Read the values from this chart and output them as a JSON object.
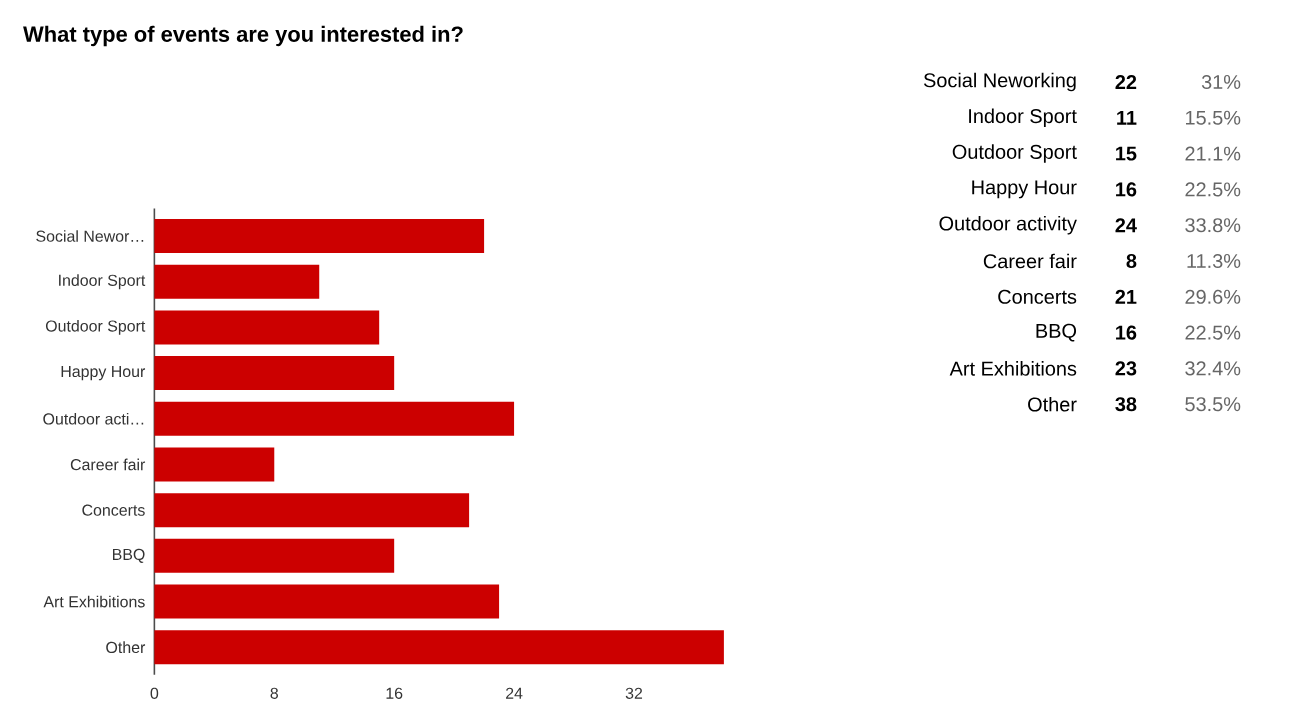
{
  "chart_data": [
    {
      "type": "bar",
      "orientation": "horizontal",
      "title": "What type of events are you interested in?",
      "categories": [
        "Social Newor…",
        "Indoor Sport",
        "Outdoor Sport",
        "Happy Hour",
        "Outdoor acti…",
        "Career fair",
        "Concerts",
        "BBQ",
        "Art Exhibitions",
        "Other"
      ],
      "values": [
        22,
        11,
        15,
        16,
        24,
        8,
        21,
        16,
        23,
        38
      ],
      "color": "#cc0000",
      "xlim": [
        0,
        38.3
      ],
      "xticks": [
        0,
        8,
        16,
        24,
        32
      ],
      "grid": false
    },
    {
      "type": "other",
      "categories": [
        "Social Neworking",
        "Indoor Sport",
        "Outdoor Sport",
        "Happy Hour",
        "Outdoor activity",
        "Career fair",
        "Concerts",
        "BBQ",
        "Art Exhibitions",
        "Other"
      ],
      "values": [
        22,
        11,
        15,
        16,
        24,
        8,
        21,
        16,
        23,
        38
      ],
      "color": "#000000",
      "data_labels": true,
      "annotations": [
        "31%",
        "15.5%",
        "21.1%",
        "22.5%",
        "33.8%",
        "11.3%",
        "29.6%",
        "22.5%",
        "32.4%",
        "53.5%"
      ]
    }
  ]
}
